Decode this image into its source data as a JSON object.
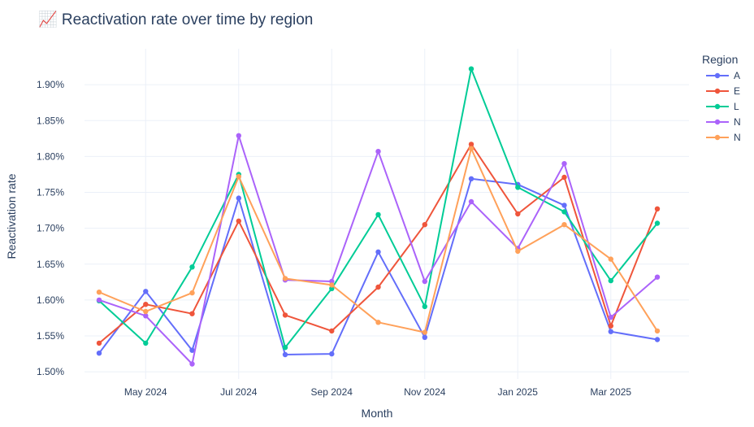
{
  "chart_data": {
    "type": "line",
    "title": "📈 Reactivation rate over time by region",
    "xlabel": "Month",
    "ylabel": "Reactivation rate",
    "x": [
      "2024-04",
      "2024-05",
      "2024-06",
      "2024-07",
      "2024-08",
      "2024-09",
      "2024-10",
      "2024-11",
      "2024-12",
      "2025-01",
      "2025-02",
      "2025-03",
      "2025-04"
    ],
    "x_ticks": [
      {
        "x": "2024-05",
        "label": "May 2024"
      },
      {
        "x": "2024-07",
        "label": "Jul 2024"
      },
      {
        "x": "2024-09",
        "label": "Sep 2024"
      },
      {
        "x": "2024-11",
        "label": "Nov 2024"
      },
      {
        "x": "2025-01",
        "label": "Jan 2025"
      },
      {
        "x": "2025-03",
        "label": "Mar 2025"
      }
    ],
    "ylim": [
      1.49,
      1.95
    ],
    "y_ticks": [
      1.5,
      1.55,
      1.6,
      1.65,
      1.7,
      1.75,
      1.8,
      1.85,
      1.9
    ],
    "y_tick_format": "percent-2dp",
    "grid": true,
    "legend": {
      "title": "Region",
      "placement": "right"
    },
    "series": [
      {
        "name": "A",
        "color": "#636efa",
        "values": [
          1.526,
          1.612,
          1.53,
          1.742,
          1.524,
          1.525,
          1.667,
          1.548,
          1.769,
          1.761,
          1.732,
          1.556,
          1.545
        ]
      },
      {
        "name": "E",
        "color": "#ef553b",
        "values": [
          1.54,
          1.594,
          1.581,
          1.71,
          1.579,
          1.557,
          1.618,
          1.705,
          1.817,
          1.72,
          1.771,
          1.564,
          1.727
        ]
      },
      {
        "name": "L",
        "color": "#00cc96",
        "values": [
          1.599,
          1.54,
          1.646,
          1.775,
          1.534,
          1.616,
          1.719,
          1.591,
          1.922,
          1.757,
          1.723,
          1.627,
          1.707
        ]
      },
      {
        "name": "N",
        "color": "#ab63fa",
        "values": [
          1.6,
          1.578,
          1.511,
          1.829,
          1.628,
          1.626,
          1.807,
          1.626,
          1.737,
          1.672,
          1.79,
          1.576,
          1.632
        ]
      },
      {
        "name": "N",
        "color": "#ffa15a",
        "values": [
          1.611,
          1.584,
          1.61,
          1.772,
          1.63,
          1.621,
          1.569,
          1.555,
          1.811,
          1.668,
          1.705,
          1.657,
          1.557
        ]
      }
    ]
  }
}
